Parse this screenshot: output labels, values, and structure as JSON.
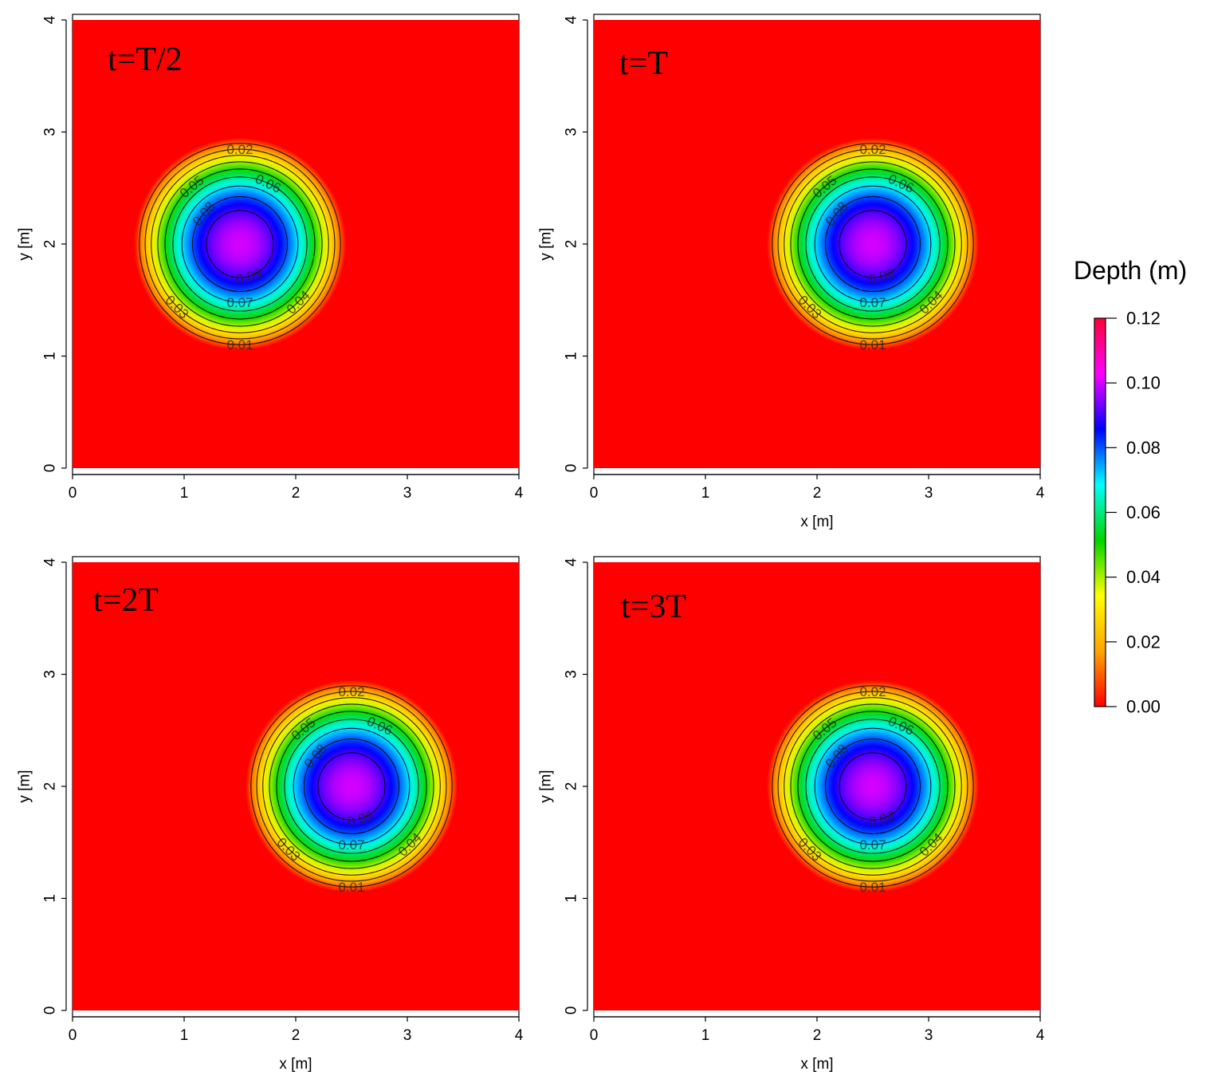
{
  "chart_data": [
    {
      "type": "heatmap",
      "title": "t=T/2",
      "xlabel": "",
      "ylabel": "y [m]",
      "xlim": [
        0,
        4
      ],
      "ylim": [
        0,
        4
      ],
      "xticks": [
        "0",
        "1",
        "2",
        "3",
        "4"
      ],
      "yticks": [
        "0",
        "1",
        "2",
        "3",
        "4"
      ],
      "hump": {
        "center_x": 1.5,
        "center_y": 2.0,
        "radius": 0.95,
        "peak_depth": 0.1
      },
      "contour_labels": [
        "0.01",
        "0.02",
        "0.03",
        "0.04",
        "0.05",
        "0.06",
        "0.07",
        "0.08",
        "0.09"
      ]
    },
    {
      "type": "heatmap",
      "title": "t=T",
      "xlabel": "x [m]",
      "ylabel": "y [m]",
      "xlim": [
        0,
        4
      ],
      "ylim": [
        0,
        4
      ],
      "xticks": [
        "0",
        "1",
        "2",
        "3",
        "4"
      ],
      "yticks": [
        "0",
        "1",
        "2",
        "3",
        "4"
      ],
      "hump": {
        "center_x": 2.5,
        "center_y": 2.0,
        "radius": 0.95,
        "peak_depth": 0.1
      },
      "contour_labels": [
        "0.01",
        "0.02",
        "0.03",
        "0.04",
        "0.05",
        "0.06",
        "0.07",
        "0.08",
        "0.09"
      ]
    },
    {
      "type": "heatmap",
      "title": "t=2T",
      "xlabel": "x [m]",
      "ylabel": "y [m]",
      "xlim": [
        0,
        4
      ],
      "ylim": [
        0,
        4
      ],
      "xticks": [
        "0",
        "1",
        "2",
        "3",
        "4"
      ],
      "yticks": [
        "0",
        "1",
        "2",
        "3",
        "4"
      ],
      "hump": {
        "center_x": 2.5,
        "center_y": 2.0,
        "radius": 0.95,
        "peak_depth": 0.1
      },
      "contour_labels": [
        "0.01",
        "0.02",
        "0.03",
        "0.04",
        "0.05",
        "0.06",
        "0.07",
        "0.08",
        "0.09"
      ]
    },
    {
      "type": "heatmap",
      "title": "t=3T",
      "xlabel": "x [m]",
      "ylabel": "y [m]",
      "xlim": [
        0,
        4
      ],
      "ylim": [
        0,
        4
      ],
      "xticks": [
        "0",
        "1",
        "2",
        "3",
        "4"
      ],
      "yticks": [
        "0",
        "1",
        "2",
        "3",
        "4"
      ],
      "hump": {
        "center_x": 2.5,
        "center_y": 2.0,
        "radius": 0.95,
        "peak_depth": 0.1
      },
      "contour_labels": [
        "0.01",
        "0.02",
        "0.03",
        "0.04",
        "0.05",
        "0.06",
        "0.07",
        "0.08",
        "0.09"
      ]
    }
  ],
  "colorbar": {
    "title": "Depth (m)",
    "min": 0.0,
    "max": 0.12,
    "ticks": [
      "0.00",
      "0.02",
      "0.04",
      "0.06",
      "0.08",
      "0.10",
      "0.12"
    ],
    "colors": [
      "#ff0000",
      "#ffa500",
      "#ffff00",
      "#00d400",
      "#00ffff",
      "#0000ff",
      "#ff00ff",
      "#ff0033"
    ],
    "background_color": "#ff0000"
  }
}
